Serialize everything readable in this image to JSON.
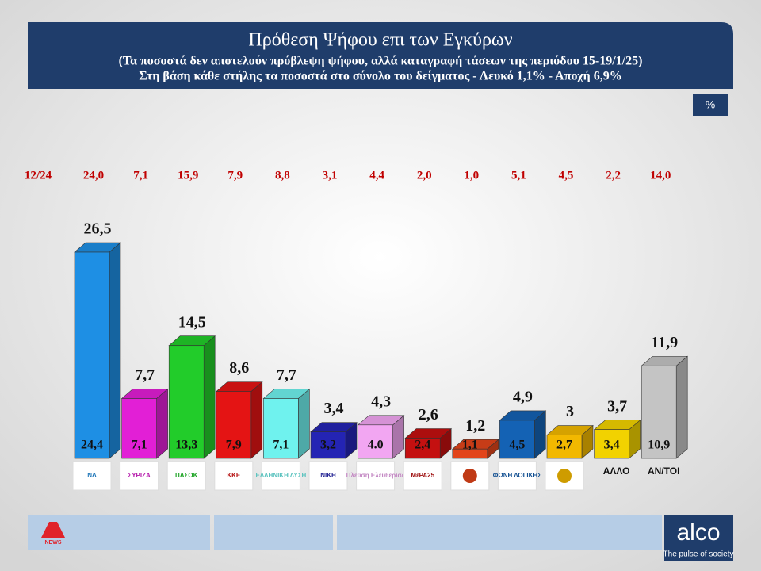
{
  "header": {
    "title": "Πρόθεση Ψήφου επι των Εγκύρων",
    "subtitle_1": "(Τα ποσοστά δεν αποτελούν πρόβλεψη ψήφου, αλλά καταγραφή τάσεων της περιόδου  15-19/1/25)",
    "subtitle_2": "Στη βάση κάθε στήλης τα ποσοστά στο σύνολο του δείγματος - Λευκό 1,1% - Αποχή 6,9%"
  },
  "badge": "%",
  "chart_data": {
    "type": "bar3d",
    "categories": [
      "ΝΔ",
      "ΣΥΡΙΖΑ",
      "ΠΑΣΟΚ",
      "ΚΚΕ",
      "ΕΛΛΗΝΙΚΗ ΛΥΣΗ",
      "ΝΙΚΗ",
      "Πλεύση Ελευθερίας",
      "ΜέΡΑ25",
      null,
      "ΦΩΝΗ ΛΟΓΙΚΗΣ",
      null,
      "ΑΛΛΟ",
      "ΑΝ/ΤΟΙ"
    ],
    "values": [
      26.5,
      7.7,
      14.5,
      8.6,
      7.7,
      3.4,
      4.3,
      2.6,
      1.2,
      4.9,
      3,
      3.7,
      11.9
    ],
    "value_labels": [
      "26,5",
      "7,7",
      "14,5",
      "8,6",
      "7,7",
      "3,4",
      "4,3",
      "2,6",
      "1,2",
      "4,9",
      "3",
      "3,7",
      "11,9"
    ],
    "inner_values": [
      24.4,
      7.1,
      13.3,
      7.9,
      7.1,
      3.2,
      4.0,
      2.4,
      1.1,
      4.5,
      2.7,
      3.4,
      10.9
    ],
    "inner_value_labels": [
      "24,4",
      "7,1",
      "13,3",
      "7,9",
      "7,1",
      "3,2",
      "4.0",
      "2,4",
      "1,1",
      "4,5",
      "2,7",
      "3,4",
      "10,9"
    ],
    "colors": [
      "#1e8fe4",
      "#e21fd6",
      "#22cc2a",
      "#e41414",
      "#6ff2ee",
      "#2424b4",
      "#f2a6f2",
      "#c41010",
      "#e2441a",
      "#1462b4",
      "#f2b800",
      "#f2d200",
      "#c4c4c4"
    ],
    "previous": {
      "label": "12/24",
      "values": [
        24.0,
        7.1,
        15.9,
        7.9,
        8.8,
        3.1,
        4.4,
        2.0,
        1.0,
        5.1,
        4.5,
        2.2,
        14.0
      ],
      "value_labels": [
        "24,0",
        "7,1",
        "15,9",
        "7,9",
        "8,8",
        "3,1",
        "4,4",
        "2,0",
        "1,0",
        "5,1",
        "4,5",
        "2,2",
        "14,0"
      ]
    }
  },
  "footer": {
    "channel": "NEWS",
    "brand": "alco",
    "tagline": "The pulse of society"
  }
}
